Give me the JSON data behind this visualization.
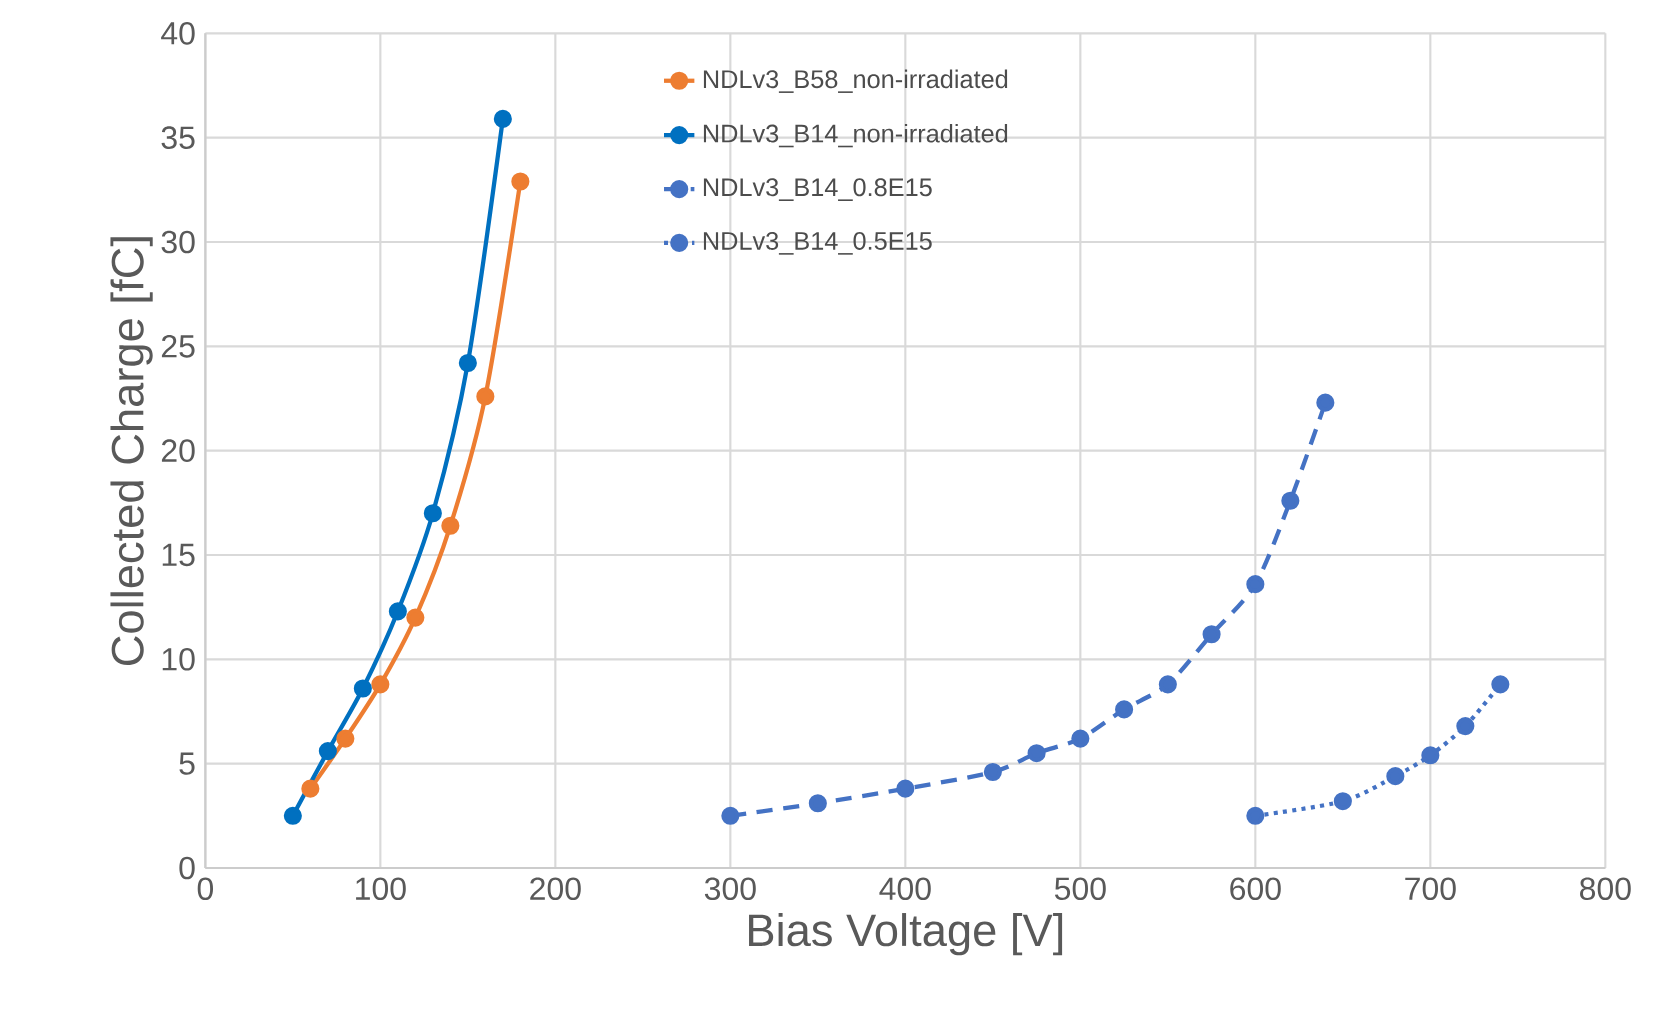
{
  "chart_data": {
    "type": "line",
    "xlabel": "Bias Voltage [V]",
    "ylabel": "Collected Charge [fC]",
    "xlim": [
      0,
      800
    ],
    "xticks": [
      0,
      100,
      200,
      300,
      400,
      500,
      600,
      700,
      800
    ],
    "ylim": [
      0,
      40
    ],
    "yticks": [
      0,
      5,
      10,
      15,
      20,
      25,
      30,
      35,
      40
    ],
    "grid": true,
    "legend": "top",
    "marker": "circle",
    "series": [
      {
        "name": "NDLv3_B58_non-irradiated",
        "color": "#ed7d31",
        "line_style": "solid",
        "x": [
          60,
          80,
          100,
          120,
          140,
          160,
          180
        ],
        "values": [
          3.8,
          6.2,
          8.8,
          12.0,
          16.4,
          22.6,
          32.9
        ]
      },
      {
        "name": "NDLv3_B14_non-irradiated",
        "color": "#0070c0",
        "line_style": "solid",
        "x": [
          50,
          70,
          90,
          110,
          130,
          150,
          170
        ],
        "values": [
          2.5,
          5.6,
          8.6,
          12.3,
          17.0,
          24.2,
          35.9
        ]
      },
      {
        "name": "NDLv3_B14_0.8E15",
        "color": "#4472c4",
        "line_style": "dashed",
        "x": [
          300,
          350,
          400,
          450,
          475,
          500,
          525,
          550,
          575,
          600,
          620,
          640
        ],
        "values": [
          2.5,
          3.1,
          3.8,
          4.6,
          5.5,
          6.2,
          7.6,
          8.8,
          11.2,
          13.6,
          17.6,
          22.3
        ]
      },
      {
        "name": "NDLv3_B14_0.5E15",
        "color": "#4472c4",
        "line_style": "dotted",
        "x": [
          600,
          650,
          680,
          700,
          720,
          740
        ],
        "values": [
          2.5,
          3.2,
          4.4,
          5.4,
          6.8,
          8.8
        ]
      }
    ]
  }
}
